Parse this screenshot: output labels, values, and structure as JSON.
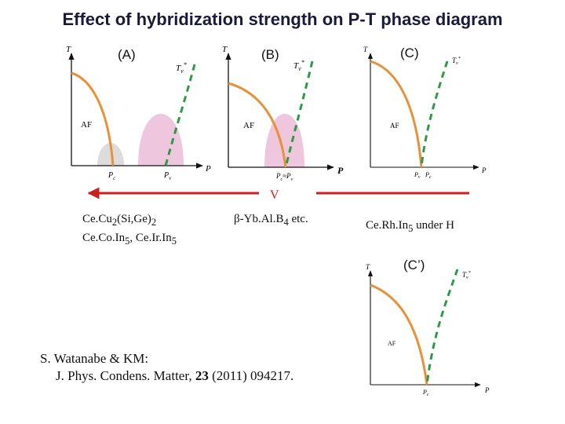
{
  "title": "Effect of hybridization strength on P-T phase diagram",
  "panels": {
    "a": {
      "label": "(A)",
      "t_axis": "T",
      "p_axis": "P",
      "tv": "T",
      "tv_sub": "v",
      "tv_sup": "*",
      "af": "AF",
      "pc": "P",
      "pc_sub": "c",
      "pv": "P",
      "pv_sub": "v"
    },
    "b": {
      "label": "(B)",
      "t_axis": "T",
      "p_axis": "P",
      "tv": "T",
      "tv_sub": "v",
      "tv_sup": "*",
      "af": "AF",
      "pcv_a": "P",
      "pcv_a_sub": "c",
      "pcv_mid": "≈",
      "pcv_b": "P",
      "pcv_b_sub": "v"
    },
    "c": {
      "label": "(C)",
      "t_axis": "T",
      "p_axis": "P",
      "tv": "T",
      "tv_sub": "v",
      "tv_sup": "*",
      "af": "AF",
      "pv": "P",
      "pv_sub": "v",
      "pc": "P",
      "pc_sub": "c"
    },
    "cp": {
      "label": "(C’)",
      "t_axis": "T",
      "p_axis": "P",
      "tv": "T",
      "tv_sub": "v",
      "tv_sup": "*",
      "af": "AF",
      "pc": "P",
      "pc_sub": "c"
    }
  },
  "middle_symbol": "V",
  "materials": {
    "left_line1": {
      "a": "Ce.Cu",
      "b": "2",
      "c": "(Si,Ge)",
      "d": "2"
    },
    "left_line2": {
      "a": "Ce.Co.In",
      "b": "5",
      "c": ", Ce.Ir.In",
      "d": "5"
    },
    "center": {
      "a": "β-Yb.Al.B",
      "b": "4",
      "c": " etc."
    },
    "right": {
      "a": "Ce.Rh.In",
      "b": "5",
      "c": " under H"
    }
  },
  "reference": {
    "line1": "S. Watanabe & KM:",
    "line2_a": "J. Phys. Condens. Matter, ",
    "line2_b": "23",
    "line2_c": " (2011) 094217."
  },
  "colors": {
    "orange": "#E8913A",
    "green": "#2E9A48",
    "pink": "#EEC6DD",
    "grey": "#DCDCDC",
    "arrow": "#CC1F1F"
  }
}
